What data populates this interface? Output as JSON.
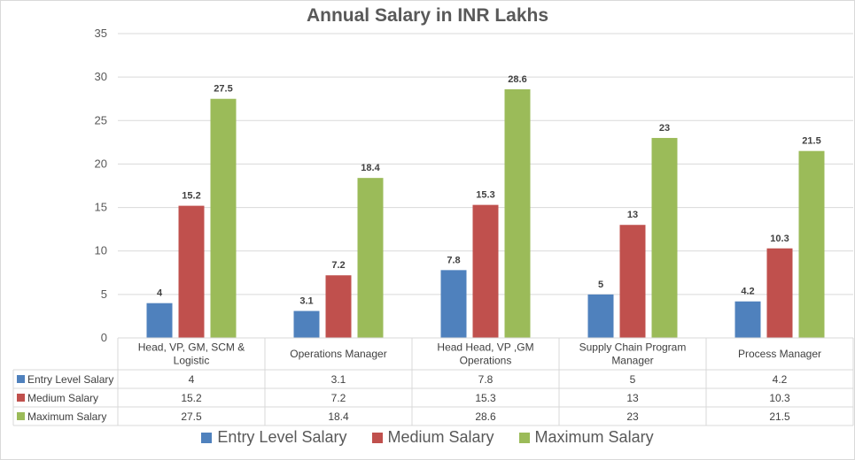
{
  "chart_data": {
    "type": "bar",
    "title": "Annual Salary in INR Lakhs",
    "xlabel": "",
    "ylabel": "",
    "ylim": [
      0,
      35
    ],
    "yticks": [
      0,
      5,
      10,
      15,
      20,
      25,
      30,
      35
    ],
    "grid": true,
    "legend_position": "bottom",
    "data_table": true,
    "categories": [
      "Head, VP, GM, SCM & Logistic",
      "Operations Manager",
      "Head Head, VP ,GM Operations",
      "Supply Chain Program Manager",
      "Process Manager"
    ],
    "category_lines": [
      [
        "Head, VP, GM, SCM &",
        "Logistic"
      ],
      [
        "Operations Manager"
      ],
      [
        "Head Head, VP ,GM",
        "Operations"
      ],
      [
        "Supply Chain Program",
        "Manager"
      ],
      [
        "Process Manager"
      ]
    ],
    "series": [
      {
        "name": "Entry Level Salary",
        "color": "#4f81bd",
        "values": [
          4,
          3.1,
          7.8,
          5,
          4.2
        ],
        "labels": [
          "4",
          "3.1",
          "7.8",
          "5",
          "4.2"
        ]
      },
      {
        "name": "Medium Salary",
        "color": "#c0504d",
        "values": [
          15.2,
          7.2,
          15.3,
          13,
          10.3
        ],
        "labels": [
          "15.2",
          "7.2",
          "15.3",
          "13",
          "10.3"
        ]
      },
      {
        "name": "Maximum Salary",
        "color": "#9bbb59",
        "values": [
          27.5,
          18.4,
          28.6,
          23,
          21.5
        ],
        "labels": [
          "27.5",
          "18.4",
          "28.6",
          "23",
          "21.5"
        ]
      }
    ]
  }
}
